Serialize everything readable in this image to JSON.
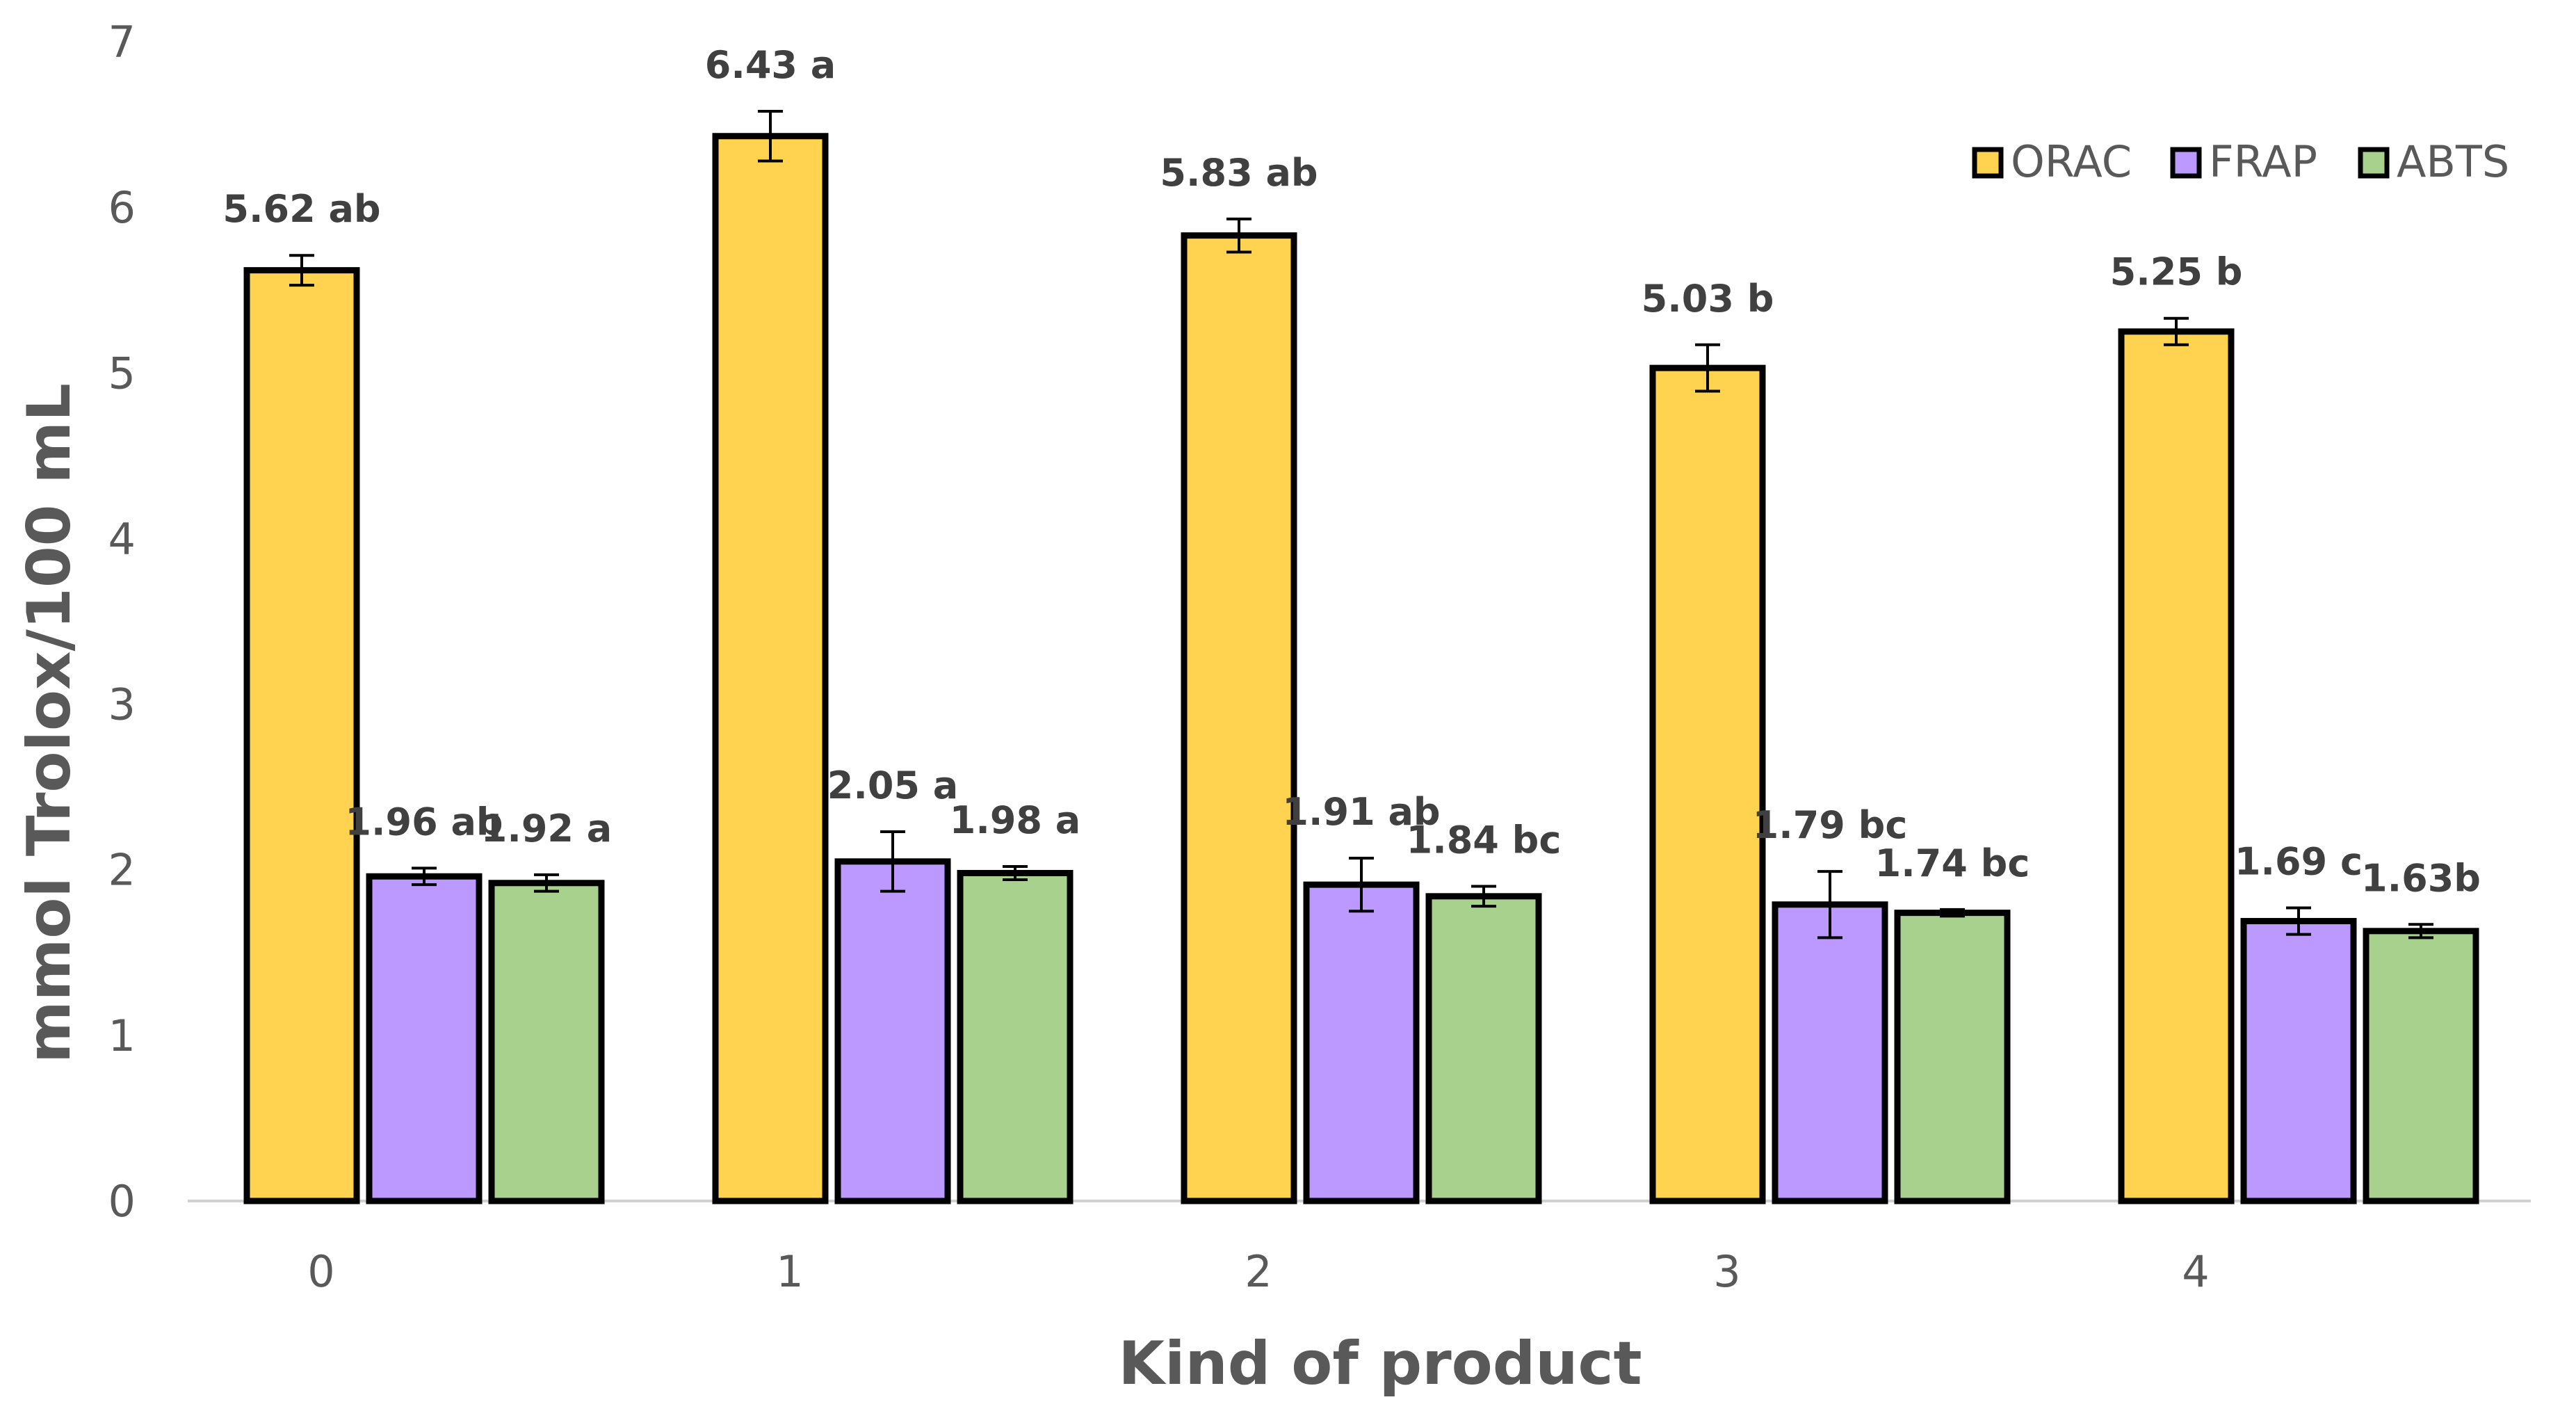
{
  "chart_data": {
    "type": "bar",
    "title": "",
    "xlabel": "Kind of product",
    "ylabel": "mmol Trolox/100 mL",
    "ylim": [
      0,
      7
    ],
    "yticks": [
      0,
      1,
      2,
      3,
      4,
      5,
      6,
      7
    ],
    "grid": false,
    "legend_position": "top-right",
    "categories": [
      "0",
      "1",
      "2",
      "3",
      "4"
    ],
    "series": [
      {
        "name": "ORAC",
        "color": "#FFD34F",
        "values": [
          5.62,
          6.43,
          5.83,
          5.03,
          5.25
        ],
        "errors": [
          0.09,
          0.15,
          0.1,
          0.14,
          0.08
        ],
        "labels": [
          "5.62 ab",
          "6.43 a",
          "5.83 ab",
          "5.03 b",
          "5.25 b"
        ]
      },
      {
        "name": "FRAP",
        "color": "#BB99FF",
        "values": [
          1.96,
          2.05,
          1.91,
          1.79,
          1.69
        ],
        "errors": [
          0.05,
          0.18,
          0.16,
          0.2,
          0.08
        ],
        "labels": [
          "1.96 ab",
          "2.05 a",
          "1.91 ab",
          "1.79 bc",
          "1.69 c"
        ]
      },
      {
        "name": "ABTS",
        "color": "#A8D18D",
        "values": [
          1.92,
          1.98,
          1.84,
          1.74,
          1.63
        ],
        "errors": [
          0.05,
          0.04,
          0.06,
          0.02,
          0.04
        ],
        "labels": [
          "1.92 a",
          "1.98 a",
          "1.84 bc",
          "1.74 bc",
          "1.63b"
        ]
      }
    ]
  }
}
